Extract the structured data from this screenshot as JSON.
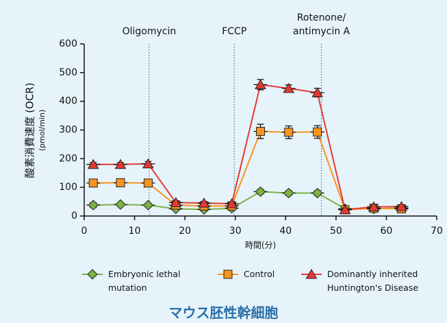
{
  "chart_data": {
    "type": "line",
    "title": "マウス胚性幹細胞",
    "x_label": "時間(分)",
    "y_label": "酸素消費速度 (OCR)",
    "y_unit": "(pmol/min)",
    "xlim": [
      0,
      70
    ],
    "xticks": [
      0,
      10,
      20,
      30,
      40,
      50,
      60,
      70
    ],
    "ylim": [
      0,
      600
    ],
    "yticks": [
      0,
      100,
      200,
      300,
      400,
      500,
      600
    ],
    "annotations": [
      {
        "lines": [
          "Oligomycin"
        ],
        "x": 12.9
      },
      {
        "lines": [
          "FCCP"
        ],
        "x": 29.8
      },
      {
        "lines": [
          "Rotenone/",
          "antimycin A"
        ],
        "x": 47.1
      }
    ],
    "x": [
      1.8,
      7.2,
      12.7,
      18.2,
      23.8,
      29.3,
      35.0,
      40.6,
      46.3,
      51.8,
      57.5,
      63.0
    ],
    "series": [
      {
        "name": "Embryonic lethal mutation",
        "color": "#7cb342",
        "marker": "diamond",
        "values": [
          38,
          40,
          38,
          25,
          23,
          27,
          85,
          80,
          80,
          25,
          25,
          28
        ],
        "errors": [
          8,
          6,
          6,
          5,
          5,
          5,
          8,
          8,
          8,
          5,
          5,
          5
        ]
      },
      {
        "name": "Control",
        "color": "#f7941d",
        "marker": "square",
        "values": [
          115,
          116,
          115,
          38,
          35,
          35,
          295,
          292,
          293,
          22,
          27,
          25
        ],
        "errors": [
          6,
          6,
          6,
          5,
          5,
          5,
          25,
          22,
          22,
          5,
          5,
          5
        ]
      },
      {
        "name": "Dominantly inherited Huntington's Disease",
        "color": "#e53935",
        "marker": "triangle",
        "values": [
          180,
          180,
          182,
          47,
          45,
          43,
          458,
          445,
          430,
          22,
          32,
          33
        ],
        "errors": [
          6,
          6,
          8,
          6,
          5,
          5,
          18,
          12,
          15,
          5,
          6,
          6
        ]
      }
    ]
  }
}
